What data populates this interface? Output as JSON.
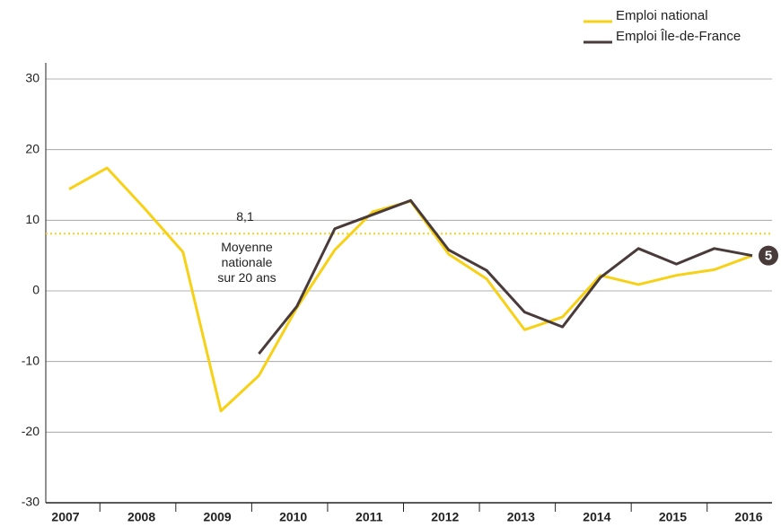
{
  "chart_data": {
    "type": "line",
    "categories": [
      "2007",
      null,
      "2008",
      null,
      "2009",
      null,
      "2010",
      null,
      "2011",
      null,
      "2012",
      null,
      "2013",
      null,
      "2014",
      null,
      "2015",
      null,
      "2016"
    ],
    "series": [
      {
        "name": "Emploi national",
        "color": "#f7d117",
        "values": [
          14.4,
          17.4,
          11.6,
          5.5,
          -17,
          -12,
          -2.4,
          5.8,
          11.2,
          12.7,
          5.2,
          1.7,
          -5.5,
          -3.7,
          2.2,
          0.9,
          2.2,
          3.0,
          5.0
        ]
      },
      {
        "name": "Emploi Île-de-France",
        "color": "#4a3b3b",
        "values": [
          null,
          null,
          null,
          null,
          null,
          -8.9,
          -2.2,
          8.8,
          10.8,
          12.8,
          5.8,
          2.9,
          -3.0,
          -5.1,
          1.9,
          6.0,
          3.8,
          6.0,
          5.0
        ]
      }
    ],
    "reference_line": {
      "value": 8.1,
      "label": "8,1",
      "text": [
        "Moyenne",
        "nationale",
        "sur 20 ans"
      ],
      "color": "#f7d117"
    },
    "ylim": [
      -30,
      30
    ],
    "yticks": [
      -30,
      -20,
      -10,
      0,
      10,
      20,
      30
    ],
    "grid": true,
    "legend": "top-right"
  }
}
